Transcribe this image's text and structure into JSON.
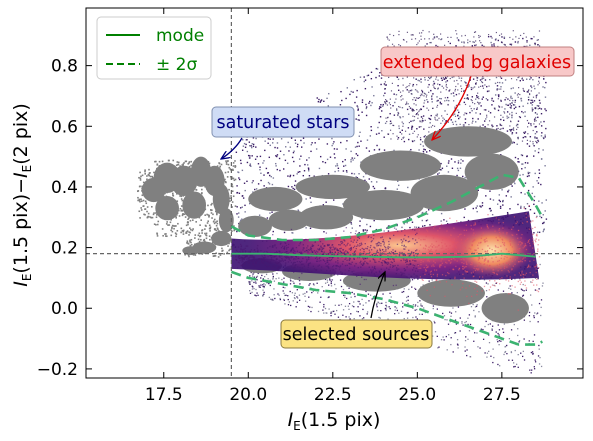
{
  "chart_data": {
    "type": "heatmap",
    "title": "",
    "xlabel": {
      "main": "I",
      "sub": "E",
      "rest": "(1.5 pix)"
    },
    "ylabel": {
      "a": "I",
      "a_sub": "E",
      "a_rest": "(1.5 pix)−",
      "b": "I",
      "b_sub": "E",
      "b_rest": "(2 pix)"
    },
    "xlim": [
      15.2,
      29.9
    ],
    "ylim": [
      -0.23,
      0.99
    ],
    "xticks": [
      17.5,
      20.0,
      22.5,
      25.0,
      27.5
    ],
    "xtick_labels": [
      "17.5",
      "20.0",
      "22.5",
      "25.0",
      "27.5"
    ],
    "yticks": [
      -0.2,
      0.0,
      0.2,
      0.4,
      0.6,
      0.8
    ],
    "ytick_labels": [
      "−0.2",
      "0.0",
      "0.2",
      "0.4",
      "0.6",
      "0.8"
    ],
    "grid": false,
    "legend": {
      "position": "top-left",
      "entries": [
        {
          "label": "mode",
          "style": "solid",
          "color": "#008000"
        },
        {
          "label": "± 2σ",
          "style": "dashed",
          "color": "#008000"
        }
      ]
    },
    "reference_lines": [
      {
        "orientation": "vertical",
        "x": 19.5,
        "style": "dashed",
        "color": "#666666"
      },
      {
        "orientation": "horizontal",
        "y": 0.18,
        "style": "dashed",
        "color": "#666666"
      }
    ],
    "series": [
      {
        "name": "mode",
        "style": "solid",
        "color": "#3cb371",
        "x": [
          19.5,
          20.5,
          21.5,
          22.5,
          23.5,
          24.5,
          25.5,
          26.5,
          27.0,
          27.5,
          28.0,
          28.5
        ],
        "y": [
          0.18,
          0.18,
          0.175,
          0.172,
          0.17,
          0.168,
          0.168,
          0.17,
          0.175,
          0.18,
          0.175,
          0.17
        ]
      },
      {
        "name": "+2σ",
        "style": "dashed",
        "color": "#3cb371",
        "x": [
          19.5,
          20.0,
          21.0,
          22.0,
          23.0,
          24.0,
          25.0,
          26.0,
          26.5,
          27.0,
          27.5,
          28.0,
          28.5,
          28.7
        ],
        "y": [
          0.27,
          0.24,
          0.225,
          0.225,
          0.235,
          0.26,
          0.3,
          0.35,
          0.38,
          0.41,
          0.44,
          0.43,
          0.34,
          0.3
        ]
      },
      {
        "name": "−2σ",
        "style": "dashed",
        "color": "#3cb371",
        "x": [
          19.5,
          20.0,
          21.0,
          22.0,
          23.0,
          24.0,
          25.0,
          26.0,
          26.5,
          27.0,
          27.5,
          28.0,
          28.5,
          28.7
        ],
        "y": [
          0.12,
          0.1,
          0.08,
          0.06,
          0.05,
          0.03,
          0.0,
          -0.04,
          -0.06,
          -0.08,
          -0.1,
          -0.12,
          -0.12,
          -0.11
        ]
      }
    ],
    "annotations": [
      {
        "text": "extended bg galaxies",
        "box_color": "#f8c8c8",
        "edge_color": "#c08080",
        "text_color": "#e00000",
        "text_x": 26.4,
        "text_y": 0.8,
        "arrow_to": [
          25.3,
          0.55
        ],
        "arrow_color": "#e00000"
      },
      {
        "text": "saturated stars",
        "box_color": "#cfdcf5",
        "edge_color": "#8090b0",
        "text_color": "#000080",
        "text_x": 21.2,
        "text_y": 0.62,
        "arrow_to": [
          19.1,
          0.49
        ],
        "arrow_color": "#000080"
      },
      {
        "text": "selected sources",
        "box_color": "#fbe383",
        "edge_color": "#8a7a40",
        "text_color": "#000000",
        "text_x": 22.8,
        "text_y": -0.08,
        "arrow_to": [
          24.0,
          0.13
        ],
        "arrow_color": "#000000"
      }
    ],
    "density_colormap": [
      "#1c0a2e",
      "#3b0f70",
      "#8c2981",
      "#de4968",
      "#fe9f6d",
      "#fcfdbf"
    ],
    "outlier_color": "#808080"
  }
}
